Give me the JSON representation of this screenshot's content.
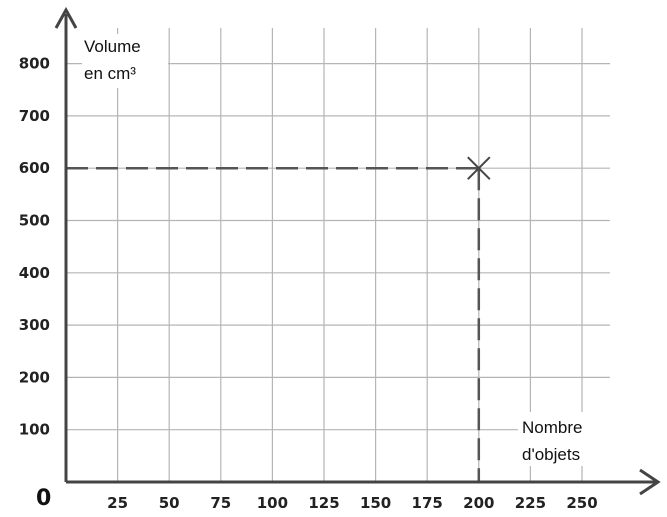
{
  "chart_data": {
    "type": "scatter",
    "title": "",
    "ylabel": [
      "Volume",
      "en cm³"
    ],
    "xlabel": [
      "Nombre",
      "d'objets"
    ],
    "origin_label": "0",
    "x_ticks": [
      25,
      50,
      75,
      100,
      125,
      150,
      175,
      200,
      225,
      250
    ],
    "y_ticks": [
      100,
      200,
      300,
      400,
      500,
      600,
      700,
      800
    ],
    "xlim": [
      0,
      275
    ],
    "ylim": [
      0,
      850
    ],
    "grid": true,
    "points": [
      {
        "x": 200,
        "y": 600,
        "marker": "cross",
        "guide_lines": true
      }
    ]
  }
}
